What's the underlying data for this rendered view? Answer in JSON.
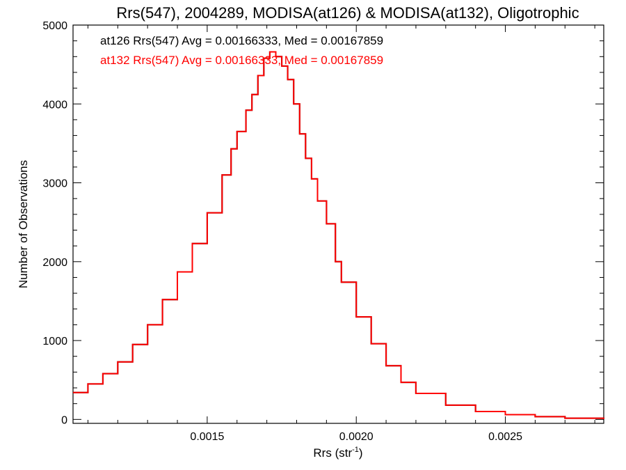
{
  "chart_data": {
    "type": "line",
    "title": "Rrs(547), 2004289, MODISA(at126) & MODISA(at132), Oligotrophic",
    "xlabel": "Rrs (str",
    "xlabel_sup": "-1",
    "xlabel_close": ")",
    "ylabel": "Number of Observations",
    "xlim": [
      0.00105,
      0.00283
    ],
    "ylim": [
      -50,
      5000
    ],
    "x_ticks": [
      {
        "value": 0.0015,
        "label": "0.0015"
      },
      {
        "value": 0.002,
        "label": "0.0020"
      },
      {
        "value": 0.0025,
        "label": "0.0025"
      }
    ],
    "y_ticks": [
      {
        "value": 0,
        "label": "0"
      },
      {
        "value": 1000,
        "label": "1000"
      },
      {
        "value": 2000,
        "label": "2000"
      },
      {
        "value": 3000,
        "label": "3000"
      },
      {
        "value": 4000,
        "label": "4000"
      },
      {
        "value": 5000,
        "label": "5000"
      }
    ],
    "legend": "top-left",
    "series": [
      {
        "name": "at126",
        "legend_text": "at126 Rrs(547) Avg = 0.00166333, Med = 0.00167859",
        "color": "#000000",
        "x": [
          0.00105,
          0.0011,
          0.00115,
          0.0012,
          0.00125,
          0.0013,
          0.00135,
          0.0014,
          0.00145,
          0.0015,
          0.00155,
          0.00158,
          0.0016,
          0.00163,
          0.00165,
          0.00167,
          0.00169,
          0.00171,
          0.00173,
          0.00175,
          0.00177,
          0.00179,
          0.00181,
          0.00183,
          0.00185,
          0.00187,
          0.0019,
          0.00193,
          0.00195,
          0.002,
          0.00205,
          0.0021,
          0.00215,
          0.0022,
          0.0023,
          0.0024,
          0.0025,
          0.0026,
          0.0027,
          0.00283
        ],
        "y": [
          340,
          450,
          580,
          730,
          950,
          1200,
          1520,
          1870,
          2230,
          2620,
          3100,
          3430,
          3650,
          3920,
          4120,
          4360,
          4580,
          4660,
          4600,
          4480,
          4310,
          4000,
          3620,
          3310,
          3050,
          2770,
          2480,
          2000,
          1740,
          1300,
          960,
          680,
          470,
          330,
          180,
          100,
          60,
          35,
          15,
          5
        ]
      },
      {
        "name": "at132",
        "legend_text": "at132 Rrs(547) Avg = 0.00166333, Med = 0.00167859",
        "color": "#ff0000",
        "x": [
          0.00105,
          0.0011,
          0.00115,
          0.0012,
          0.00125,
          0.0013,
          0.00135,
          0.0014,
          0.00145,
          0.0015,
          0.00155,
          0.00158,
          0.0016,
          0.00163,
          0.00165,
          0.00167,
          0.00169,
          0.00171,
          0.00173,
          0.00175,
          0.00177,
          0.00179,
          0.00181,
          0.00183,
          0.00185,
          0.00187,
          0.0019,
          0.00193,
          0.00195,
          0.002,
          0.00205,
          0.0021,
          0.00215,
          0.0022,
          0.0023,
          0.0024,
          0.0025,
          0.0026,
          0.0027,
          0.00283
        ],
        "y": [
          340,
          450,
          580,
          730,
          950,
          1200,
          1520,
          1870,
          2230,
          2620,
          3100,
          3430,
          3650,
          3920,
          4120,
          4360,
          4580,
          4660,
          4600,
          4480,
          4310,
          4000,
          3620,
          3310,
          3050,
          2770,
          2480,
          2000,
          1740,
          1300,
          960,
          680,
          470,
          330,
          180,
          100,
          60,
          35,
          15,
          5
        ]
      }
    ]
  }
}
